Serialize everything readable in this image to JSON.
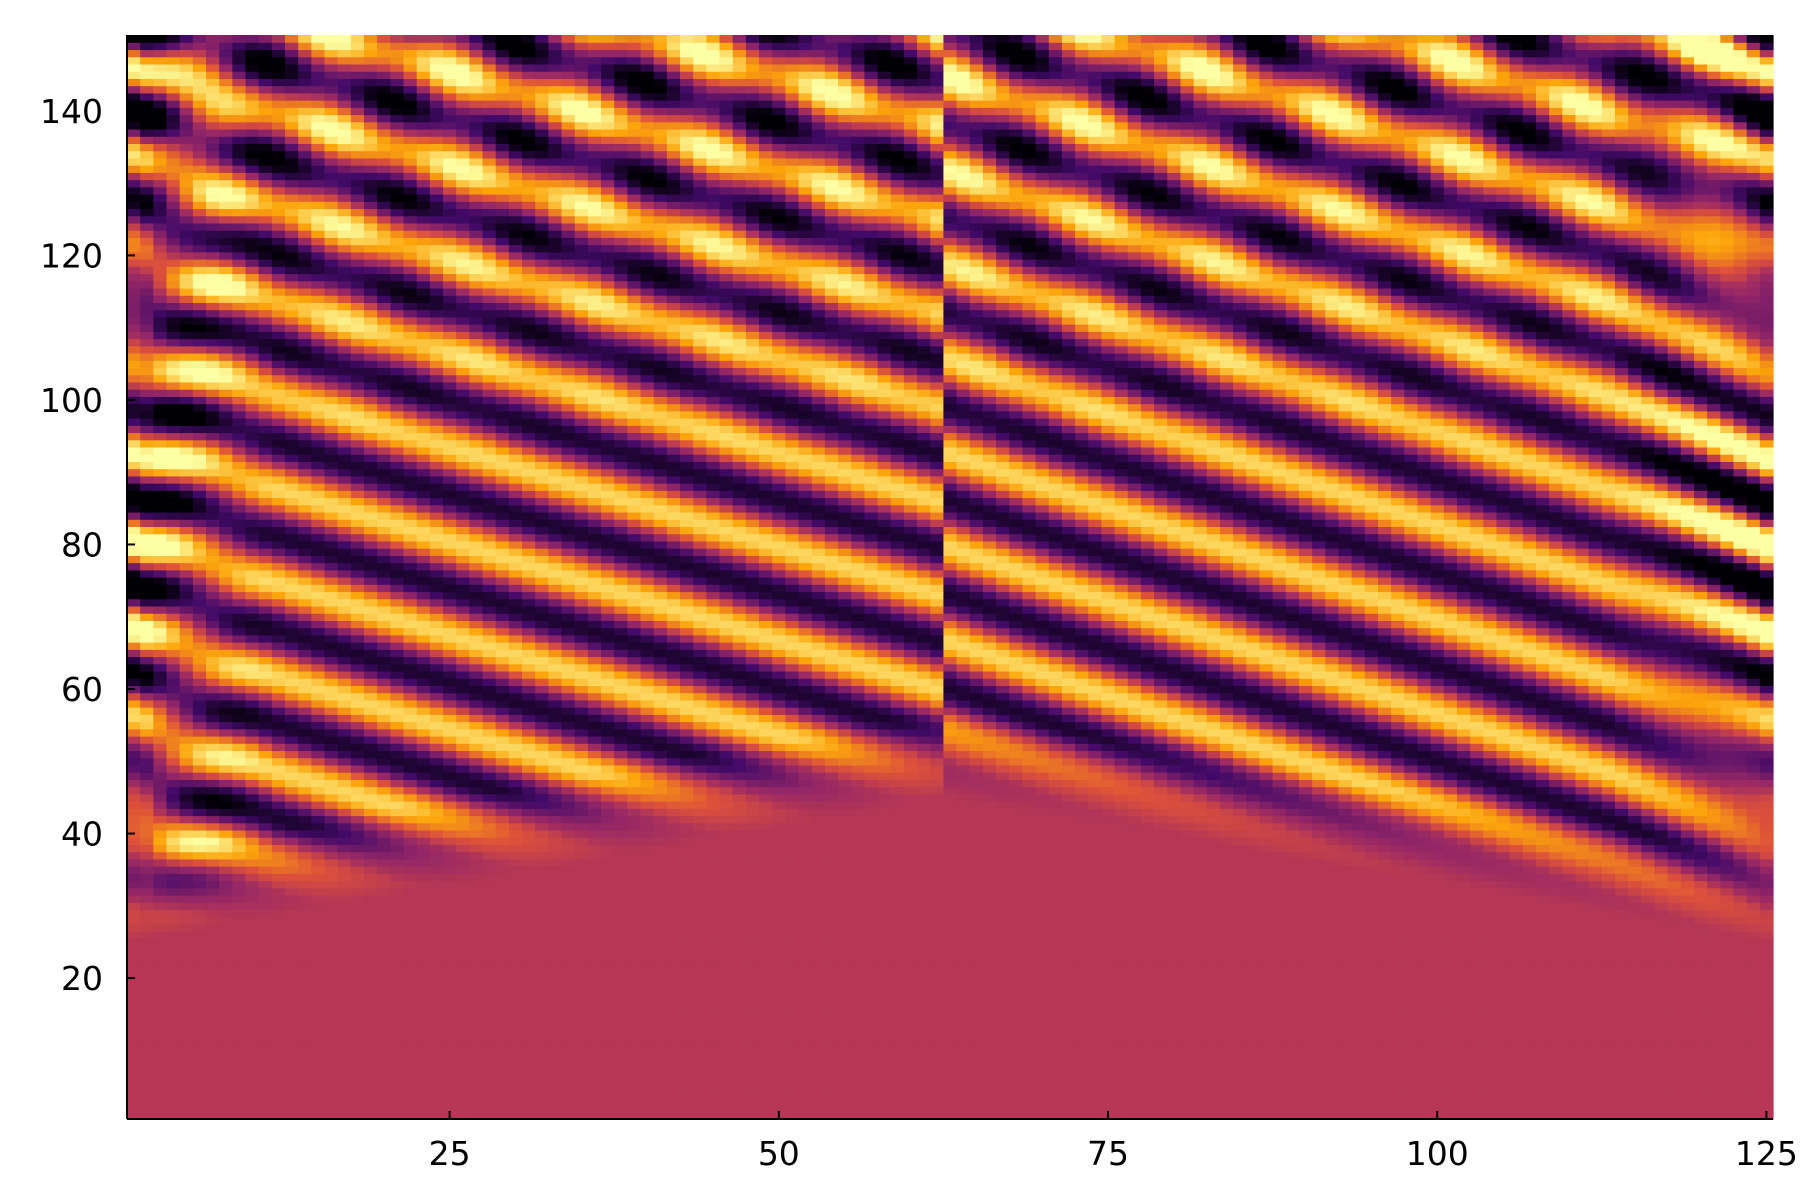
{
  "chart_data": {
    "type": "heatmap",
    "title": "",
    "xlabel": "",
    "ylabel": "",
    "x_range": [
      0.5,
      125.5
    ],
    "y_range": [
      0.5,
      150.5
    ],
    "x_ticks": [
      25,
      50,
      75,
      100,
      125
    ],
    "x_tick_labels": [
      "25",
      "50",
      "75",
      "100",
      "125"
    ],
    "y_ticks": [
      20,
      40,
      60,
      80,
      100,
      120,
      140
    ],
    "y_tick_labels": [
      "20",
      "40",
      "60",
      "80",
      "100",
      "120",
      "140"
    ],
    "colormap": "inferno",
    "colorbar": false,
    "grid": false,
    "background_value": 0.5,
    "background_color": "#b53755",
    "source_position_x": 63,
    "front_onset_y": 45,
    "front_slope_per_column": 0.62,
    "band_wavelength": 13,
    "colors": [
      "#000004",
      "#420a68",
      "#932667",
      "#b53755",
      "#dd513a",
      "#fca50a",
      "#fcffa4"
    ]
  }
}
